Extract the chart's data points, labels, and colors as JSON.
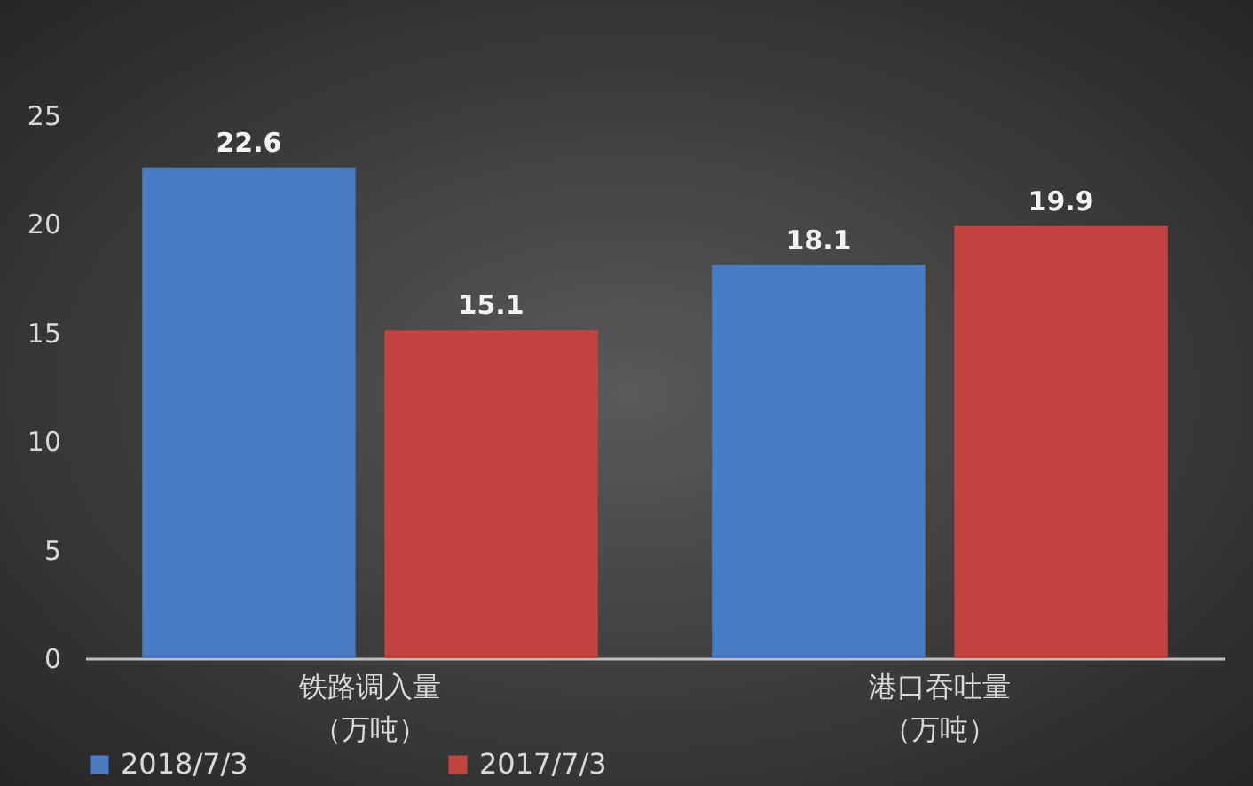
{
  "chart_data": {
    "type": "bar",
    "categories": [
      "铁路调入量（万吨）",
      "港口吞吐量（万吨）"
    ],
    "series": [
      {
        "name": "2018/7/3",
        "color": "#4a7cc4",
        "values": [
          22.6,
          18.1
        ]
      },
      {
        "name": "2017/7/3",
        "color": "#c3433f",
        "values": [
          15.1,
          19.9
        ]
      }
    ],
    "ylim": [
      0,
      25
    ],
    "yticks": [
      0,
      5,
      10,
      15,
      20,
      25
    ],
    "grid": false,
    "legend": "bottom",
    "data_labels": true
  }
}
